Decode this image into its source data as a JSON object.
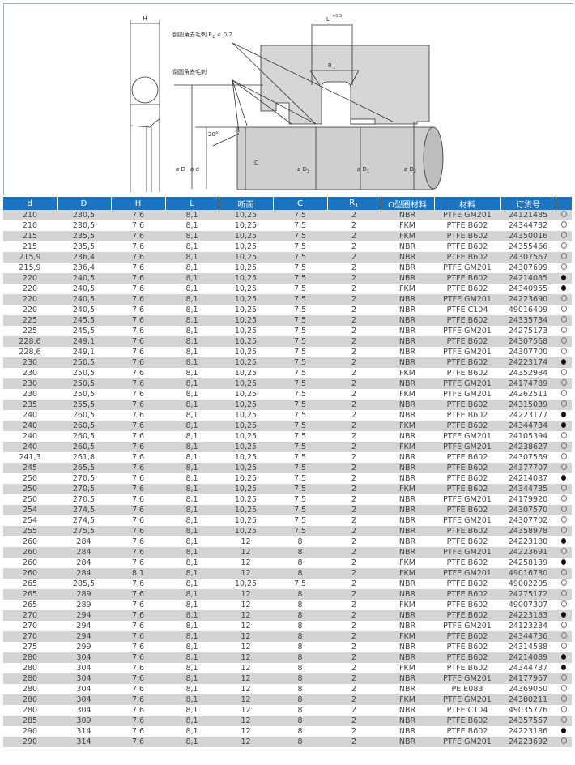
{
  "figure": {
    "H": "H",
    "L": "L",
    "L_tol": "+0,3",
    "R1": "R",
    "R1_sub": "1",
    "note1": "倒圆角去毛刺 R",
    "note1_sub": "2",
    "note1_tail": " < 0,2",
    "note2": "倒圆角去毛刺",
    "angle": "20°",
    "C": "C",
    "D": "ø D",
    "d": "ø d",
    "D3": "ø D",
    "D3_sub": "3",
    "D1": "ø D",
    "D1_sub": "1",
    "D2": "ø D",
    "D2_sub": "2"
  },
  "headers": [
    "d",
    "D",
    "H",
    "L",
    "断面",
    "C",
    "R",
    "O型圈材料",
    "材料",
    "订货号",
    ""
  ],
  "header_r_sub": "1",
  "rows": [
    [
      "210",
      "230,5",
      "7,6",
      "8,1",
      "10,25",
      "7,5",
      "2",
      "NBR",
      "PTFE GM201",
      "24121485",
      "o"
    ],
    [
      "210",
      "230,5",
      "7,6",
      "8,1",
      "10,25",
      "7,5",
      "2",
      "FKM",
      "PTFE B602",
      "24344732",
      "o"
    ],
    [
      "215",
      "235,5",
      "7,6",
      "8,1",
      "10,25",
      "7,5",
      "2",
      "FKM",
      "PTFE B602",
      "24350016",
      "o"
    ],
    [
      "215",
      "235,5",
      "7,6",
      "8,1",
      "10,25",
      "7,5",
      "2",
      "NBR",
      "PTFE B602",
      "24355466",
      "o"
    ],
    [
      "215,9",
      "236,4",
      "7,6",
      "8,1",
      "10,25",
      "7,5",
      "2",
      "NBR",
      "PTFE B602",
      "24307567",
      "o"
    ],
    [
      "215,9",
      "236,4",
      "7,6",
      "8,1",
      "10,25",
      "7,5",
      "2",
      "NBR",
      "PTFE GM201",
      "24307699",
      "o"
    ],
    [
      "220",
      "240,5",
      "7,6",
      "8,1",
      "10,25",
      "7,5",
      "2",
      "NBR",
      "PTFE B602",
      "24214085",
      "f"
    ],
    [
      "220",
      "240,5",
      "7,6",
      "8,1",
      "10,25",
      "7,5",
      "2",
      "FKM",
      "PTFE B602",
      "24340955",
      "f"
    ],
    [
      "220",
      "240,5",
      "7,6",
      "8,1",
      "10,25",
      "7,5",
      "2",
      "NBR",
      "PTFE GM201",
      "24223690",
      "o"
    ],
    [
      "220",
      "240,5",
      "7,6",
      "8,1",
      "10,25",
      "7,5",
      "2",
      "NBR",
      "PTFE C104",
      "49016409",
      "o"
    ],
    [
      "225",
      "245,5",
      "7,6",
      "8,1",
      "10,25",
      "7,5",
      "2",
      "NBR",
      "PTFE B602",
      "24335734",
      "o"
    ],
    [
      "225",
      "245,5",
      "7,6",
      "8,1",
      "10,25",
      "7,5",
      "2",
      "NBR",
      "PTFE GM201",
      "24275173",
      "o"
    ],
    [
      "228,6",
      "249,1",
      "7,6",
      "8,1",
      "10,25",
      "7,5",
      "2",
      "NBR",
      "PTFE B602",
      "24307568",
      "o"
    ],
    [
      "228,6",
      "249,1",
      "7,6",
      "8,1",
      "10,25",
      "7,5",
      "2",
      "NBR",
      "PTFE GM201",
      "24307700",
      "o"
    ],
    [
      "230",
      "250,5",
      "7,6",
      "8,1",
      "10,25",
      "7,5",
      "2",
      "NBR",
      "PTFE B602",
      "24223174",
      "f"
    ],
    [
      "230",
      "250,5",
      "7,6",
      "8,1",
      "10,25",
      "7,5",
      "2",
      "FKM",
      "PTFE B602",
      "24352984",
      "o"
    ],
    [
      "230",
      "250,5",
      "7,6",
      "8,1",
      "10,25",
      "7,5",
      "2",
      "NBR",
      "PTFE GM201",
      "24174789",
      "o"
    ],
    [
      "230",
      "250,5",
      "7,6",
      "8,1",
      "10,25",
      "7,5",
      "2",
      "FKM",
      "PTFE GM201",
      "24262511",
      "o"
    ],
    [
      "235",
      "255,5",
      "7,6",
      "8,1",
      "10,25",
      "7,5",
      "2",
      "NBR",
      "PTFE B602",
      "24315039",
      "o"
    ],
    [
      "240",
      "260,5",
      "7,6",
      "8,1",
      "10,25",
      "7,5",
      "2",
      "NBR",
      "PTFE B602",
      "24223177",
      "f"
    ],
    [
      "240",
      "260,5",
      "7,6",
      "8,1",
      "10,25",
      "7,5",
      "2",
      "FKM",
      "PTFE B602",
      "24344734",
      "f"
    ],
    [
      "240",
      "260,5",
      "7,6",
      "8,1",
      "10,25",
      "7,5",
      "2",
      "NBR",
      "PTFE GM201",
      "24105394",
      "o"
    ],
    [
      "240",
      "260,5",
      "7,6",
      "8,1",
      "10,25",
      "7,5",
      "2",
      "FKM",
      "PTFE GM201",
      "24238627",
      "o"
    ],
    [
      "241,3",
      "261,8",
      "7,6",
      "8,1",
      "10,25",
      "7,5",
      "2",
      "NBR",
      "PTFE B602",
      "24307569",
      "o"
    ],
    [
      "245",
      "265,5",
      "7,6",
      "8,1",
      "10,25",
      "7,5",
      "2",
      "NBR",
      "PTFE B602",
      "24377707",
      "o"
    ],
    [
      "250",
      "270,5",
      "7,6",
      "8,1",
      "10,25",
      "7,5",
      "2",
      "NBR",
      "PTFE B602",
      "24214087",
      "f"
    ],
    [
      "250",
      "270,5",
      "7,6",
      "8,1",
      "10,25",
      "7,5",
      "2",
      "FKM",
      "PTFE B602",
      "24344735",
      "o"
    ],
    [
      "250",
      "270,5",
      "7,6",
      "8,1",
      "10,25",
      "7,5",
      "2",
      "NBR",
      "PTFE GM201",
      "24179920",
      "o"
    ],
    [
      "254",
      "274,5",
      "7,6",
      "8,1",
      "10,25",
      "7,5",
      "2",
      "NBR",
      "PTFE B602",
      "24307570",
      "o"
    ],
    [
      "254",
      "274,5",
      "7,6",
      "8,1",
      "10,25",
      "7,5",
      "2",
      "NBR",
      "PTFE GM201",
      "24307702",
      "o"
    ],
    [
      "255",
      "275,5",
      "7,6",
      "8,1",
      "10,25",
      "7,5",
      "2",
      "NBR",
      "PTFE B602",
      "24358978",
      "o"
    ],
    [
      "260",
      "284",
      "7,6",
      "8,1",
      "12",
      "8",
      "2",
      "NBR",
      "PTFE B602",
      "24223180",
      "f"
    ],
    [
      "260",
      "284",
      "7,6",
      "8,1",
      "12",
      "8",
      "2",
      "NBR",
      "PTFE GM201",
      "24223691",
      "o"
    ],
    [
      "260",
      "284",
      "7,6",
      "8,1",
      "12",
      "8",
      "2",
      "FKM",
      "PTFE B602",
      "24258139",
      "f"
    ],
    [
      "260",
      "284",
      "8,1",
      "8,1",
      "12",
      "8",
      "2",
      "FKM",
      "PTFE GM201",
      "49016730",
      "o"
    ],
    [
      "265",
      "285,5",
      "7,6",
      "8,1",
      "10,25",
      "7,5",
      "2",
      "NBR",
      "PTFE B602",
      "49002205",
      "o"
    ],
    [
      "265",
      "289",
      "7,6",
      "8,1",
      "12",
      "8",
      "2",
      "NBR",
      "PTFE B602",
      "24275172",
      "o"
    ],
    [
      "265",
      "289",
      "7,6",
      "8,1",
      "12",
      "8",
      "2",
      "FKM",
      "PTFE B602",
      "49007307",
      "o"
    ],
    [
      "270",
      "294",
      "7,6",
      "8,1",
      "12",
      "8",
      "2",
      "NBR",
      "PTFE B602",
      "24223183",
      "f"
    ],
    [
      "270",
      "294",
      "7,6",
      "8,1",
      "12",
      "8",
      "2",
      "NBR",
      "PTFE GM201",
      "24123234",
      "o"
    ],
    [
      "270",
      "294",
      "7,6",
      "8,1",
      "12",
      "8",
      "2",
      "FKM",
      "PTFE B602",
      "24344736",
      "o"
    ],
    [
      "275",
      "299",
      "7,6",
      "8,1",
      "12",
      "8",
      "2",
      "NBR",
      "PTFE B602",
      "24314588",
      "o"
    ],
    [
      "280",
      "304",
      "7,6",
      "8,1",
      "12",
      "8",
      "2",
      "NBR",
      "PTFE B602",
      "24214089",
      "f"
    ],
    [
      "280",
      "304",
      "7,6",
      "8,1",
      "12",
      "8",
      "2",
      "FKM",
      "PTFE B602",
      "24344737",
      "f"
    ],
    [
      "280",
      "304",
      "7,6",
      "8,1",
      "12",
      "8",
      "2",
      "NBR",
      "PTFE GM201",
      "24177957",
      "o"
    ],
    [
      "280",
      "304",
      "7,6",
      "8,1",
      "12",
      "8",
      "2",
      "NBR",
      "PE E083",
      "24369050",
      "o"
    ],
    [
      "280",
      "304",
      "7,6",
      "8,1",
      "12",
      "8",
      "2",
      "FKM",
      "PTFE GM201",
      "24380211",
      "o"
    ],
    [
      "280",
      "304",
      "7,6",
      "8,1",
      "12",
      "8",
      "2",
      "NBR",
      "PTFE C104",
      "49035776",
      "o"
    ],
    [
      "285",
      "309",
      "7,6",
      "8,1",
      "12",
      "8",
      "2",
      "NBR",
      "PTFE B602",
      "24357557",
      "o"
    ],
    [
      "290",
      "314",
      "7,6",
      "8,1",
      "12",
      "8",
      "2",
      "NBR",
      "PTFE B602",
      "24223186",
      "f"
    ],
    [
      "290",
      "314",
      "7,6",
      "8,1",
      "12",
      "8",
      "2",
      "NBR",
      "PTFE GM201",
      "24223692",
      "o"
    ]
  ]
}
